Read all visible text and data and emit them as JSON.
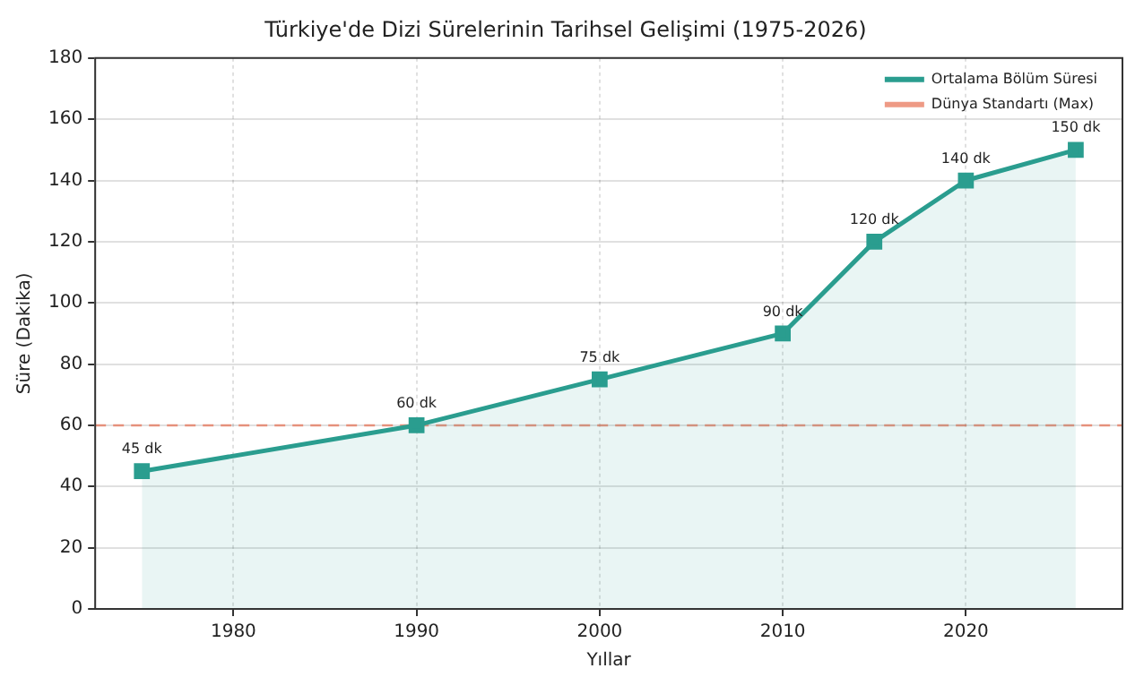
{
  "chart_data": {
    "type": "area",
    "title": "Türkiye'de Dizi Sürelerinin Tarihsel Gelişimi (1975-2026)",
    "xlabel": "Yıllar",
    "ylabel": "Süre (Dakika)",
    "x": [
      1975,
      1990,
      2000,
      2010,
      2015,
      2020,
      2026
    ],
    "series": [
      {
        "name": "Ortalama Bölüm Süresi",
        "color": "#2a9d8f",
        "values": [
          45,
          60,
          75,
          90,
          120,
          140,
          150
        ],
        "value_labels": [
          "45 dk",
          "60 dk",
          "75 dk",
          "90 dk",
          "120 dk",
          "140 dk",
          "150 dk"
        ]
      }
    ],
    "xlim": [
      1972.45,
      2028.55
    ],
    "xticks": [
      1980,
      1990,
      2000,
      2010,
      2020
    ],
    "ylim": [
      0,
      180
    ],
    "yticks": [
      0,
      20,
      40,
      60,
      80,
      100,
      120,
      140,
      160,
      180
    ],
    "ref_lines": [
      {
        "axis": "y",
        "value": 60,
        "label": "Dünya Standartı (Max)",
        "color": "#e76f51",
        "line_style": "dashed"
      }
    ],
    "grid": true,
    "legend": "top right",
    "marker": "square",
    "line_style": "solid"
  }
}
